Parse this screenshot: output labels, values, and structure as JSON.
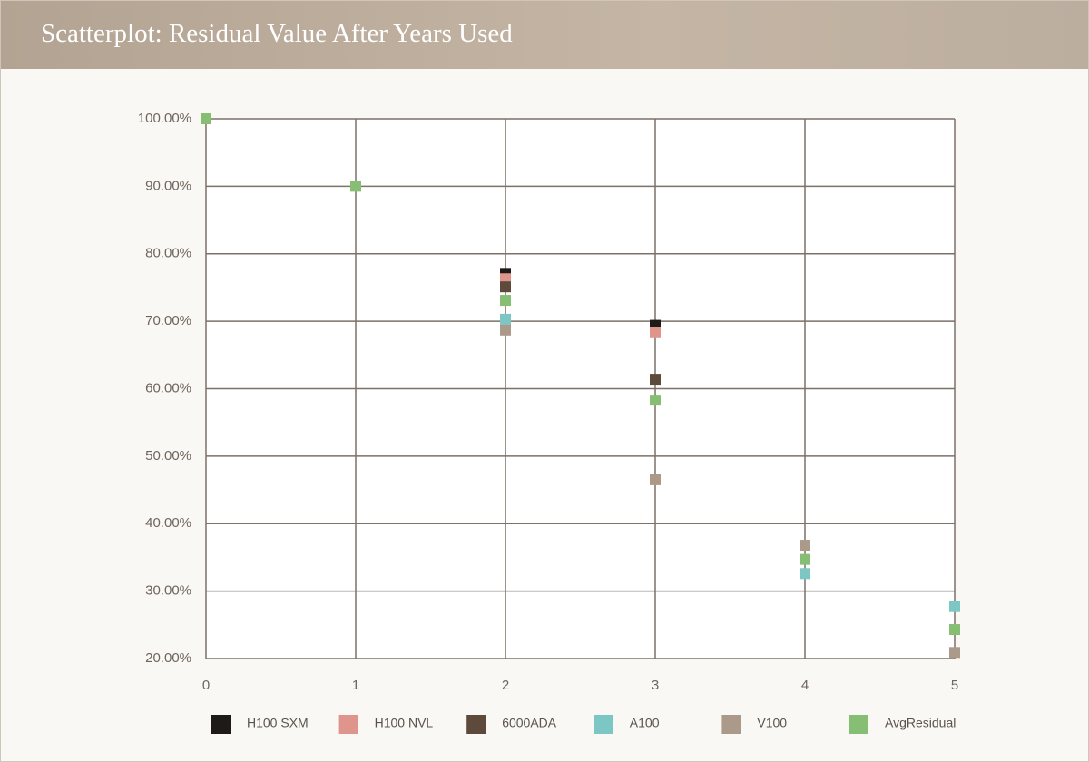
{
  "chart_data": {
    "type": "scatter",
    "title": "Scatterplot: Residual Value After Years Used",
    "xlim": [
      0,
      5
    ],
    "xticks": [
      0,
      1,
      2,
      3,
      4,
      5
    ],
    "ylim": [
      20,
      100
    ],
    "yticks": [
      {
        "value": 20,
        "label": "20.00%"
      },
      {
        "value": 30,
        "label": "30.00%"
      },
      {
        "value": 40,
        "label": "40.00%"
      },
      {
        "value": 50,
        "label": "50.00%"
      },
      {
        "value": 60,
        "label": "60.00%"
      },
      {
        "value": 70,
        "label": "70.00%"
      },
      {
        "value": 80,
        "label": "80.00%"
      },
      {
        "value": 90,
        "label": "90.00%"
      },
      {
        "value": 100,
        "label": "100.00%"
      }
    ],
    "grid": true,
    "legend": "bottom",
    "series": [
      {
        "name": "H100 SXM",
        "color": "#1e1a17",
        "x": [
          2,
          3
        ],
        "values": [
          77.1,
          69.4
        ]
      },
      {
        "name": "H100 NVL",
        "color": "#e0958c",
        "x": [
          2,
          3
        ],
        "values": [
          76.3,
          68.3
        ]
      },
      {
        "name": "6000ADA",
        "color": "#5e4a3a",
        "x": [
          2,
          3
        ],
        "values": [
          75.1,
          61.4
        ]
      },
      {
        "name": "A100",
        "color": "#7cc6c4",
        "x": [
          2,
          4,
          5
        ],
        "values": [
          70.3,
          32.6,
          27.7
        ]
      },
      {
        "name": "V100",
        "color": "#ab9a8a",
        "x": [
          2,
          3,
          4,
          5
        ],
        "values": [
          68.7,
          46.5,
          36.8,
          20.9
        ]
      },
      {
        "name": "AvgResidual",
        "color": "#86bf74",
        "x": [
          0,
          1,
          2,
          3,
          4,
          5
        ],
        "values": [
          100,
          90,
          73.1,
          58.3,
          34.7,
          24.3
        ]
      }
    ]
  }
}
